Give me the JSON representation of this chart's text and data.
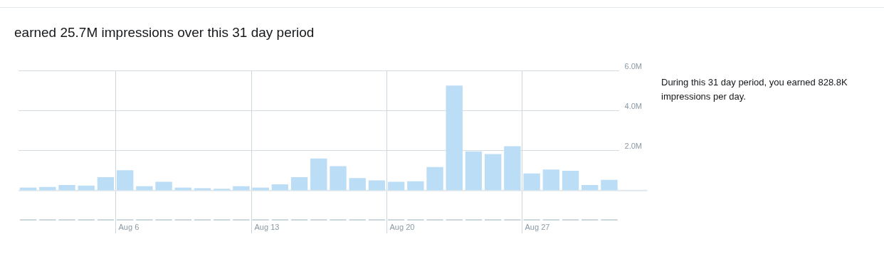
{
  "chart_data": {
    "type": "bar",
    "title": "earned 25.7M impressions over this 31 day period",
    "annotations": [
      "During this 31 day period, you earned 828.8K impressions per day."
    ],
    "categories": [
      null,
      null,
      null,
      null,
      null,
      "Aug 6",
      null,
      null,
      null,
      null,
      null,
      null,
      "Aug 13",
      null,
      null,
      null,
      null,
      null,
      null,
      "Aug 20",
      null,
      null,
      null,
      null,
      null,
      null,
      "Aug 27",
      null,
      null,
      null,
      null
    ],
    "series": [
      {
        "color": "#bbddf5",
        "values": [
          0.15,
          0.18,
          0.28,
          0.25,
          0.67,
          1.02,
          0.22,
          0.44,
          0.15,
          0.12,
          0.09,
          0.22,
          0.15,
          0.31,
          0.67,
          1.6,
          1.22,
          0.63,
          0.51,
          0.44,
          0.47,
          1.18,
          5.25,
          1.96,
          1.83,
          2.22,
          0.86,
          1.05,
          0.99,
          0.28,
          0.54
        ]
      }
    ],
    "ylim": [
      -1.5,
      6
    ],
    "yticks": [
      {
        "value": 0,
        "label": null
      },
      {
        "value": 2,
        "label": "2.0M"
      },
      {
        "value": 4,
        "label": "4.0M"
      },
      {
        "value": 6,
        "label": "6.0M"
      }
    ],
    "grid": "y",
    "legend": false
  }
}
